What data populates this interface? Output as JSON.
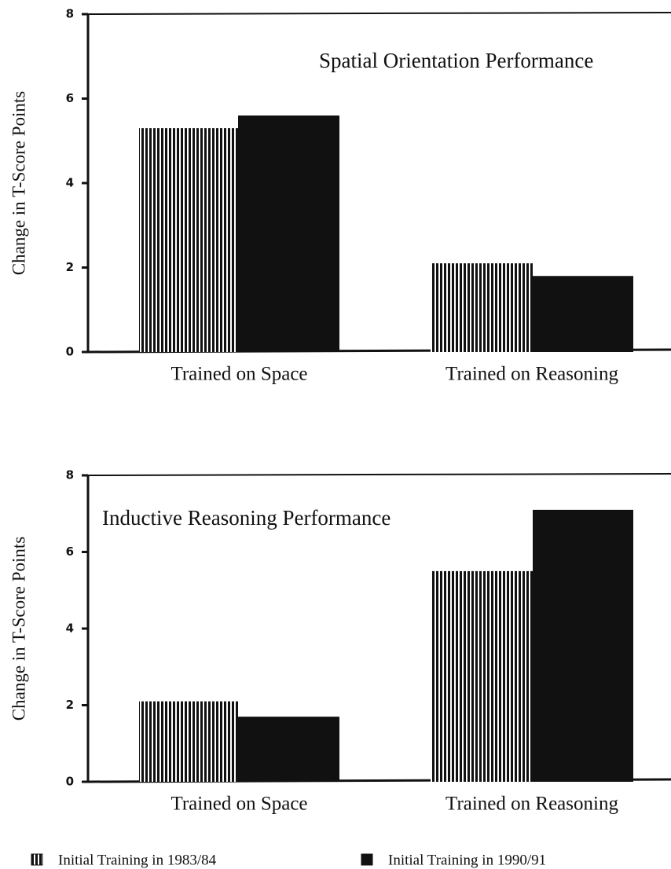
{
  "chart_data": [
    {
      "type": "bar",
      "title": "Spatial Orientation Performance",
      "y_label": "Change in T-Score Points",
      "categories": [
        "Trained on Space",
        "Trained on Reasoning"
      ],
      "series": [
        {
          "values": [
            5.3,
            2.1
          ]
        },
        {
          "values": [
            5.6,
            1.8
          ]
        }
      ],
      "ylim": [
        0,
        8
      ],
      "yticks": [
        0,
        2,
        4,
        6,
        8
      ]
    },
    {
      "type": "bar",
      "title": "Inductive Reasoning Performance",
      "y_label": "Change in T-Score Points",
      "categories": [
        "Trained on Space",
        "Trained on Reasoning"
      ],
      "series": [
        {
          "values": [
            2.1,
            5.5
          ]
        },
        {
          "values": [
            1.7,
            7.1
          ]
        }
      ],
      "ylim": [
        0,
        8
      ],
      "yticks": [
        0,
        2,
        4,
        6,
        8
      ]
    }
  ],
  "legend": [
    {
      "name": "Initial Training in 1983/84",
      "color": "#111",
      "pattern": "striped"
    },
    {
      "name": "Initial Training in 1990/91",
      "color": "#111",
      "pattern": "solid"
    }
  ]
}
